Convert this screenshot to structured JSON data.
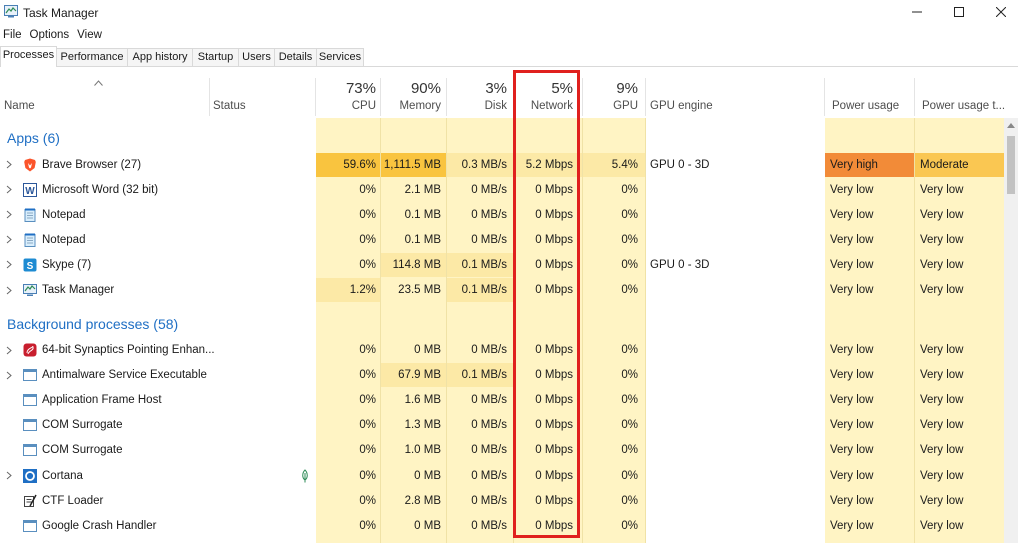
{
  "window": {
    "title": "Task Manager",
    "icon": "task-manager-icon"
  },
  "menu": [
    "File",
    "Options",
    "View"
  ],
  "tabs": [
    {
      "label": "Processes",
      "active": true
    },
    {
      "label": "Performance"
    },
    {
      "label": "App history"
    },
    {
      "label": "Startup"
    },
    {
      "label": "Users"
    },
    {
      "label": "Details"
    },
    {
      "label": "Services"
    }
  ],
  "header": {
    "name": "Name",
    "status": "Status",
    "cpu": {
      "pct": "73%",
      "label": "CPU"
    },
    "memory": {
      "pct": "90%",
      "label": "Memory"
    },
    "disk": {
      "pct": "3%",
      "label": "Disk"
    },
    "network": {
      "pct": "5%",
      "label": "Network"
    },
    "gpu": {
      "pct": "9%",
      "label": "GPU"
    },
    "gpu_engine": "GPU engine",
    "power_usage": "Power usage",
    "power_usage_trend": "Power usage t..."
  },
  "groups": {
    "apps": "Apps (6)",
    "background": "Background processes (58)"
  },
  "apps": [
    {
      "name": "Brave Browser (27)",
      "icon": "brave-icon",
      "expandable": true,
      "cpu": "59.6%",
      "memory": "1,111.5 MB",
      "disk": "0.3 MB/s",
      "network": "5.2 Mbps",
      "gpu": "5.4%",
      "gpu_engine": "GPU 0 - 3D",
      "power": "Very high",
      "power_trend": "Moderate"
    },
    {
      "name": "Microsoft Word (32 bit)",
      "icon": "word-icon",
      "expandable": true,
      "cpu": "0%",
      "memory": "2.1 MB",
      "disk": "0 MB/s",
      "network": "0 Mbps",
      "gpu": "0%",
      "gpu_engine": "",
      "power": "Very low",
      "power_trend": "Very low"
    },
    {
      "name": "Notepad",
      "icon": "notepad-icon",
      "expandable": true,
      "cpu": "0%",
      "memory": "0.1 MB",
      "disk": "0 MB/s",
      "network": "0 Mbps",
      "gpu": "0%",
      "gpu_engine": "",
      "power": "Very low",
      "power_trend": "Very low"
    },
    {
      "name": "Notepad",
      "icon": "notepad-icon",
      "expandable": true,
      "cpu": "0%",
      "memory": "0.1 MB",
      "disk": "0 MB/s",
      "network": "0 Mbps",
      "gpu": "0%",
      "gpu_engine": "",
      "power": "Very low",
      "power_trend": "Very low"
    },
    {
      "name": "Skype (7)",
      "icon": "skype-icon",
      "expandable": true,
      "cpu": "0%",
      "memory": "114.8 MB",
      "disk": "0.1 MB/s",
      "network": "0 Mbps",
      "gpu": "0%",
      "gpu_engine": "GPU 0 - 3D",
      "power": "Very low",
      "power_trend": "Very low"
    },
    {
      "name": "Task Manager",
      "icon": "task-manager-icon",
      "expandable": true,
      "cpu": "1.2%",
      "memory": "23.5 MB",
      "disk": "0.1 MB/s",
      "network": "0 Mbps",
      "gpu": "0%",
      "gpu_engine": "",
      "power": "Very low",
      "power_trend": "Very low"
    }
  ],
  "background": [
    {
      "name": "64-bit Synaptics Pointing Enhan...",
      "icon": "synaptics-icon",
      "expandable": true,
      "cpu": "0%",
      "memory": "0 MB",
      "disk": "0 MB/s",
      "network": "0 Mbps",
      "gpu": "0%",
      "power": "Very low",
      "power_trend": "Very low"
    },
    {
      "name": "Antimalware Service Executable",
      "icon": "service-icon",
      "expandable": true,
      "cpu": "0%",
      "memory": "67.9 MB",
      "disk": "0.1 MB/s",
      "network": "0 Mbps",
      "gpu": "0%",
      "power": "Very low",
      "power_trend": "Very low"
    },
    {
      "name": "Application Frame Host",
      "icon": "window-icon",
      "expandable": false,
      "cpu": "0%",
      "memory": "1.6 MB",
      "disk": "0 MB/s",
      "network": "0 Mbps",
      "gpu": "0%",
      "power": "Very low",
      "power_trend": "Very low"
    },
    {
      "name": "COM Surrogate",
      "icon": "window-icon",
      "expandable": false,
      "cpu": "0%",
      "memory": "1.3 MB",
      "disk": "0 MB/s",
      "network": "0 Mbps",
      "gpu": "0%",
      "power": "Very low",
      "power_trend": "Very low"
    },
    {
      "name": "COM Surrogate",
      "icon": "window-icon",
      "expandable": false,
      "cpu": "0%",
      "memory": "1.0 MB",
      "disk": "0 MB/s",
      "network": "0 Mbps",
      "gpu": "0%",
      "power": "Very low",
      "power_trend": "Very low"
    },
    {
      "name": "Cortana",
      "icon": "cortana-icon",
      "expandable": true,
      "status_icon": "leaf-icon",
      "cpu": "0%",
      "memory": "0 MB",
      "disk": "0 MB/s",
      "network": "0 Mbps",
      "gpu": "0%",
      "power": "Very low",
      "power_trend": "Very low"
    },
    {
      "name": "CTF Loader",
      "icon": "ctf-icon",
      "expandable": false,
      "cpu": "0%",
      "memory": "2.8 MB",
      "disk": "0 MB/s",
      "network": "0 Mbps",
      "gpu": "0%",
      "power": "Very low",
      "power_trend": "Very low"
    },
    {
      "name": "Google Crash Handler",
      "icon": "window-icon",
      "expandable": false,
      "cpu": "0%",
      "memory": "0 MB",
      "disk": "0 MB/s",
      "network": "0 Mbps",
      "gpu": "0%",
      "power": "Very low",
      "power_trend": "Very low"
    }
  ],
  "colors": {
    "heat_light": "#fff4c4",
    "heat_mid": "#fce9a6",
    "heat_high": "#f9c43f",
    "power_very_high": "#f28b38",
    "power_moderate": "#fac752",
    "group_text": "#1f6fc4",
    "highlight": "#e0201e"
  }
}
